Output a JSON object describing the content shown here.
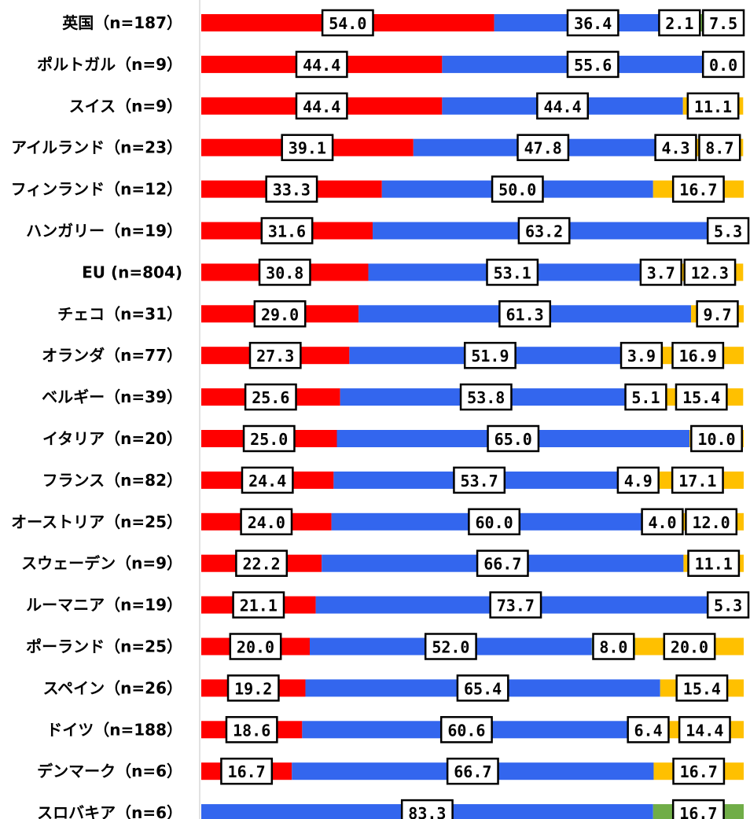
{
  "colors": {
    "series0": "#ff0000",
    "series1": "#3366ee",
    "series2": "#70ad47",
    "series3": "#ffc000",
    "axis": "#d9d9d9"
  },
  "chart_data": {
    "type": "bar",
    "orientation": "horizontal",
    "stacked": true,
    "percent": true,
    "title": "",
    "xlabel": "",
    "ylabel": "",
    "xlim": [
      0,
      100
    ],
    "grid": false,
    "legend": "none",
    "categories": [
      "英国（n=187）",
      "ポルトガル（n=9）",
      "スイス（n=9）",
      "アイルランド（n=23）",
      "フィンランド（n=12）",
      "ハンガリー（n=19）",
      "EU (n=804)",
      "チェコ（n=31）",
      "オランダ（n=77）",
      "ベルギー（n=39）",
      "イタリア（n=20）",
      "フランス（n=82）",
      "オーストリア（n=25）",
      "スウェーデン（n=9）",
      "ルーマニア（n=19）",
      "ポーランド（n=25）",
      "スペイン（n=26）",
      "ドイツ（n=188）",
      "デンマーク（n=6）",
      "スロバキア（n=6）"
    ],
    "series": [
      {
        "values": [
          54.0,
          44.4,
          44.4,
          39.1,
          33.3,
          31.6,
          30.8,
          29.0,
          27.3,
          25.6,
          25.0,
          24.4,
          24.0,
          22.2,
          21.1,
          20.0,
          19.2,
          18.6,
          16.7,
          0.0
        ]
      },
      {
        "values": [
          36.4,
          55.6,
          44.4,
          47.8,
          50.0,
          63.2,
          53.1,
          61.3,
          51.9,
          53.8,
          65.0,
          53.7,
          60.0,
          66.7,
          73.7,
          52.0,
          65.4,
          60.6,
          66.7,
          83.3
        ]
      },
      {
        "values": [
          2.1,
          0.0,
          0.0,
          4.3,
          0.0,
          0.0,
          3.7,
          0.0,
          3.9,
          5.1,
          0.0,
          4.9,
          4.0,
          0.0,
          0.0,
          8.0,
          0.0,
          6.4,
          0.0,
          16.7
        ]
      },
      {
        "values": [
          7.5,
          0.0,
          11.1,
          8.7,
          16.7,
          5.3,
          12.3,
          9.7,
          16.9,
          15.4,
          10.0,
          17.1,
          12.0,
          11.1,
          5.3,
          20.0,
          15.4,
          14.4,
          16.7,
          0.0
        ]
      }
    ],
    "data_labels": [
      [
        "54.0",
        "36.4",
        "2.1",
        "7.5"
      ],
      [
        "44.4",
        "55.6",
        "0.0"
      ],
      [
        "44.4",
        "44.4",
        "11.1"
      ],
      [
        "39.1",
        "47.8",
        "4.3",
        "8.7"
      ],
      [
        "33.3",
        "50.0",
        "16.7"
      ],
      [
        "31.6",
        "63.2",
        "5.3"
      ],
      [
        "30.8",
        "53.1",
        "3.7",
        "12.3"
      ],
      [
        "29.0",
        "61.3",
        "9.7"
      ],
      [
        "27.3",
        "51.9",
        "3.9",
        "16.9"
      ],
      [
        "25.6",
        "53.8",
        "5.1",
        "15.4"
      ],
      [
        "25.0",
        "65.0",
        "10.0"
      ],
      [
        "24.4",
        "53.7",
        "4.9",
        "17.1"
      ],
      [
        "24.0",
        "60.0",
        "4.0",
        "12.0"
      ],
      [
        "22.2",
        "66.7",
        "11.1"
      ],
      [
        "21.1",
        "73.7",
        "5.3"
      ],
      [
        "20.0",
        "52.0",
        "8.0",
        "20.0"
      ],
      [
        "19.2",
        "65.4",
        "15.4"
      ],
      [
        "18.6",
        "60.6",
        "6.4",
        "14.4"
      ],
      [
        "16.7",
        "66.7",
        "16.7"
      ],
      [
        "83.3",
        "16.7"
      ]
    ]
  }
}
